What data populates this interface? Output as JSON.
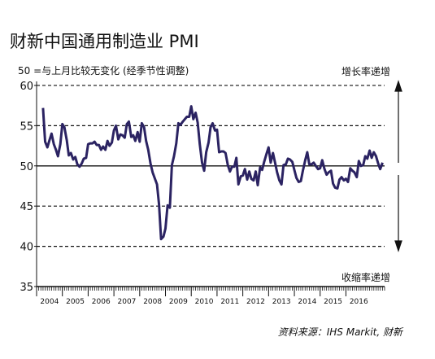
{
  "chart_data": {
    "type": "line",
    "title": "财新中国通用制造业 PMI",
    "subtitle": "50 =与上月比较无变化 (经季节性调整)",
    "annotations": {
      "up": "增长率递增",
      "down": "收缩率递增"
    },
    "source": "资料来源：IHS Markit, 财新",
    "xlim": [
      2004,
      2017.5
    ],
    "xticks": [
      2004,
      2005,
      2006,
      2007,
      2008,
      2009,
      2010,
      2011,
      2012,
      2013,
      2014,
      2015,
      2016
    ],
    "ylim": [
      35,
      60.5
    ],
    "yticks": [
      35,
      40,
      45,
      50,
      55,
      60
    ],
    "baseline": 50,
    "grid": true,
    "series": [
      {
        "color": "#2b2362",
        "x": [
          2004.25,
          2004.33,
          2004.42,
          2004.5,
          2004.58,
          2004.67,
          2004.75,
          2004.83,
          2004.92,
          2005,
          2005.08,
          2005.17,
          2005.25,
          2005.33,
          2005.42,
          2005.5,
          2005.58,
          2005.67,
          2005.75,
          2005.83,
          2005.92,
          2006,
          2006.08,
          2006.17,
          2006.25,
          2006.33,
          2006.42,
          2006.5,
          2006.58,
          2006.67,
          2006.75,
          2006.83,
          2006.92,
          2007,
          2007.08,
          2007.17,
          2007.25,
          2007.33,
          2007.42,
          2007.5,
          2007.58,
          2007.67,
          2007.75,
          2007.83,
          2007.92,
          2008,
          2008.08,
          2008.17,
          2008.25,
          2008.33,
          2008.42,
          2008.5,
          2008.58,
          2008.67,
          2008.75,
          2008.83,
          2008.92,
          2009,
          2009.08,
          2009.17,
          2009.25,
          2009.33,
          2009.42,
          2009.5,
          2009.58,
          2009.67,
          2009.75,
          2009.83,
          2009.92,
          2010,
          2010.08,
          2010.17,
          2010.25,
          2010.33,
          2010.42,
          2010.5,
          2010.58,
          2010.67,
          2010.75,
          2010.83,
          2010.92,
          2011,
          2011.08,
          2011.17,
          2011.25,
          2011.33,
          2011.42,
          2011.5,
          2011.58,
          2011.67,
          2011.75,
          2011.83,
          2011.92,
          2012,
          2012.08,
          2012.17,
          2012.25,
          2012.33,
          2012.42,
          2012.5,
          2012.58,
          2012.67,
          2012.75,
          2012.83,
          2012.92,
          2013,
          2013.08,
          2013.17,
          2013.25,
          2013.33,
          2013.42,
          2013.5,
          2013.58,
          2013.67,
          2013.75,
          2013.83,
          2013.92,
          2014,
          2014.08,
          2014.17,
          2014.25,
          2014.33,
          2014.42,
          2014.5,
          2014.58,
          2014.67,
          2014.75,
          2014.83,
          2014.92,
          2015,
          2015.08,
          2015.17,
          2015.25,
          2015.33,
          2015.42,
          2015.5,
          2015.58,
          2015.67,
          2015.75,
          2015.83,
          2015.92,
          2016,
          2016.08,
          2016.17,
          2016.25,
          2016.33,
          2016.42,
          2016.5,
          2016.58,
          2016.67,
          2016.75,
          2016.83,
          2016.92,
          2017,
          2017.08,
          2017.17,
          2017.25,
          2017.33,
          2017.42
        ],
        "values": [
          57.2,
          53.0,
          52.3,
          53.2,
          54.0,
          52.7,
          52.0,
          51.2,
          52.7,
          55.2,
          54.8,
          53.2,
          51.3,
          51.6,
          50.8,
          51.1,
          50.2,
          49.9,
          50.3,
          50.9,
          51.0,
          52.7,
          52.8,
          52.8,
          53.0,
          52.6,
          52.6,
          52.0,
          52.4,
          52.0,
          53.1,
          52.5,
          52.9,
          54.4,
          55.0,
          53.3,
          53.9,
          53.8,
          53.5,
          55.2,
          55.5,
          53.6,
          53.8,
          53.1,
          54.2,
          53.0,
          55.3,
          54.8,
          53.1,
          52.0,
          50.3,
          49.2,
          48.5,
          47.7,
          45.2,
          40.9,
          41.2,
          42.2,
          45.1,
          44.8,
          50.1,
          51.2,
          52.8,
          55.3,
          55.1,
          55.5,
          55.8,
          56.1,
          56.1,
          57.4,
          55.8,
          56.6,
          55.4,
          52.7,
          50.4,
          49.4,
          51.7,
          52.9,
          54.8,
          55.3,
          54.4,
          54.5,
          51.7,
          51.8,
          51.8,
          51.6,
          50.1,
          49.3,
          49.9,
          49.9,
          51.0,
          47.7,
          48.7,
          48.8,
          49.6,
          48.3,
          49.3,
          48.4,
          48.2,
          49.3,
          47.6,
          49.8,
          49.5,
          50.5,
          51.5,
          52.3,
          50.4,
          51.6,
          50.4,
          49.2,
          48.2,
          47.7,
          50.1,
          50.2,
          50.9,
          50.8,
          50.5,
          49.5,
          48.5,
          48.0,
          48.1,
          49.4,
          50.7,
          51.7,
          50.2,
          50.2,
          50.4,
          50.0,
          49.6,
          49.7,
          50.7,
          49.6,
          48.9,
          49.2,
          49.4,
          47.8,
          47.3,
          47.2,
          48.3,
          48.6,
          48.2,
          48.4,
          48.0,
          49.7,
          49.4,
          49.2,
          48.6,
          50.6,
          50.0,
          50.1,
          51.2,
          50.9,
          51.9,
          51.0,
          51.7,
          51.2,
          50.3,
          49.6,
          50.4
        ]
      }
    ]
  }
}
